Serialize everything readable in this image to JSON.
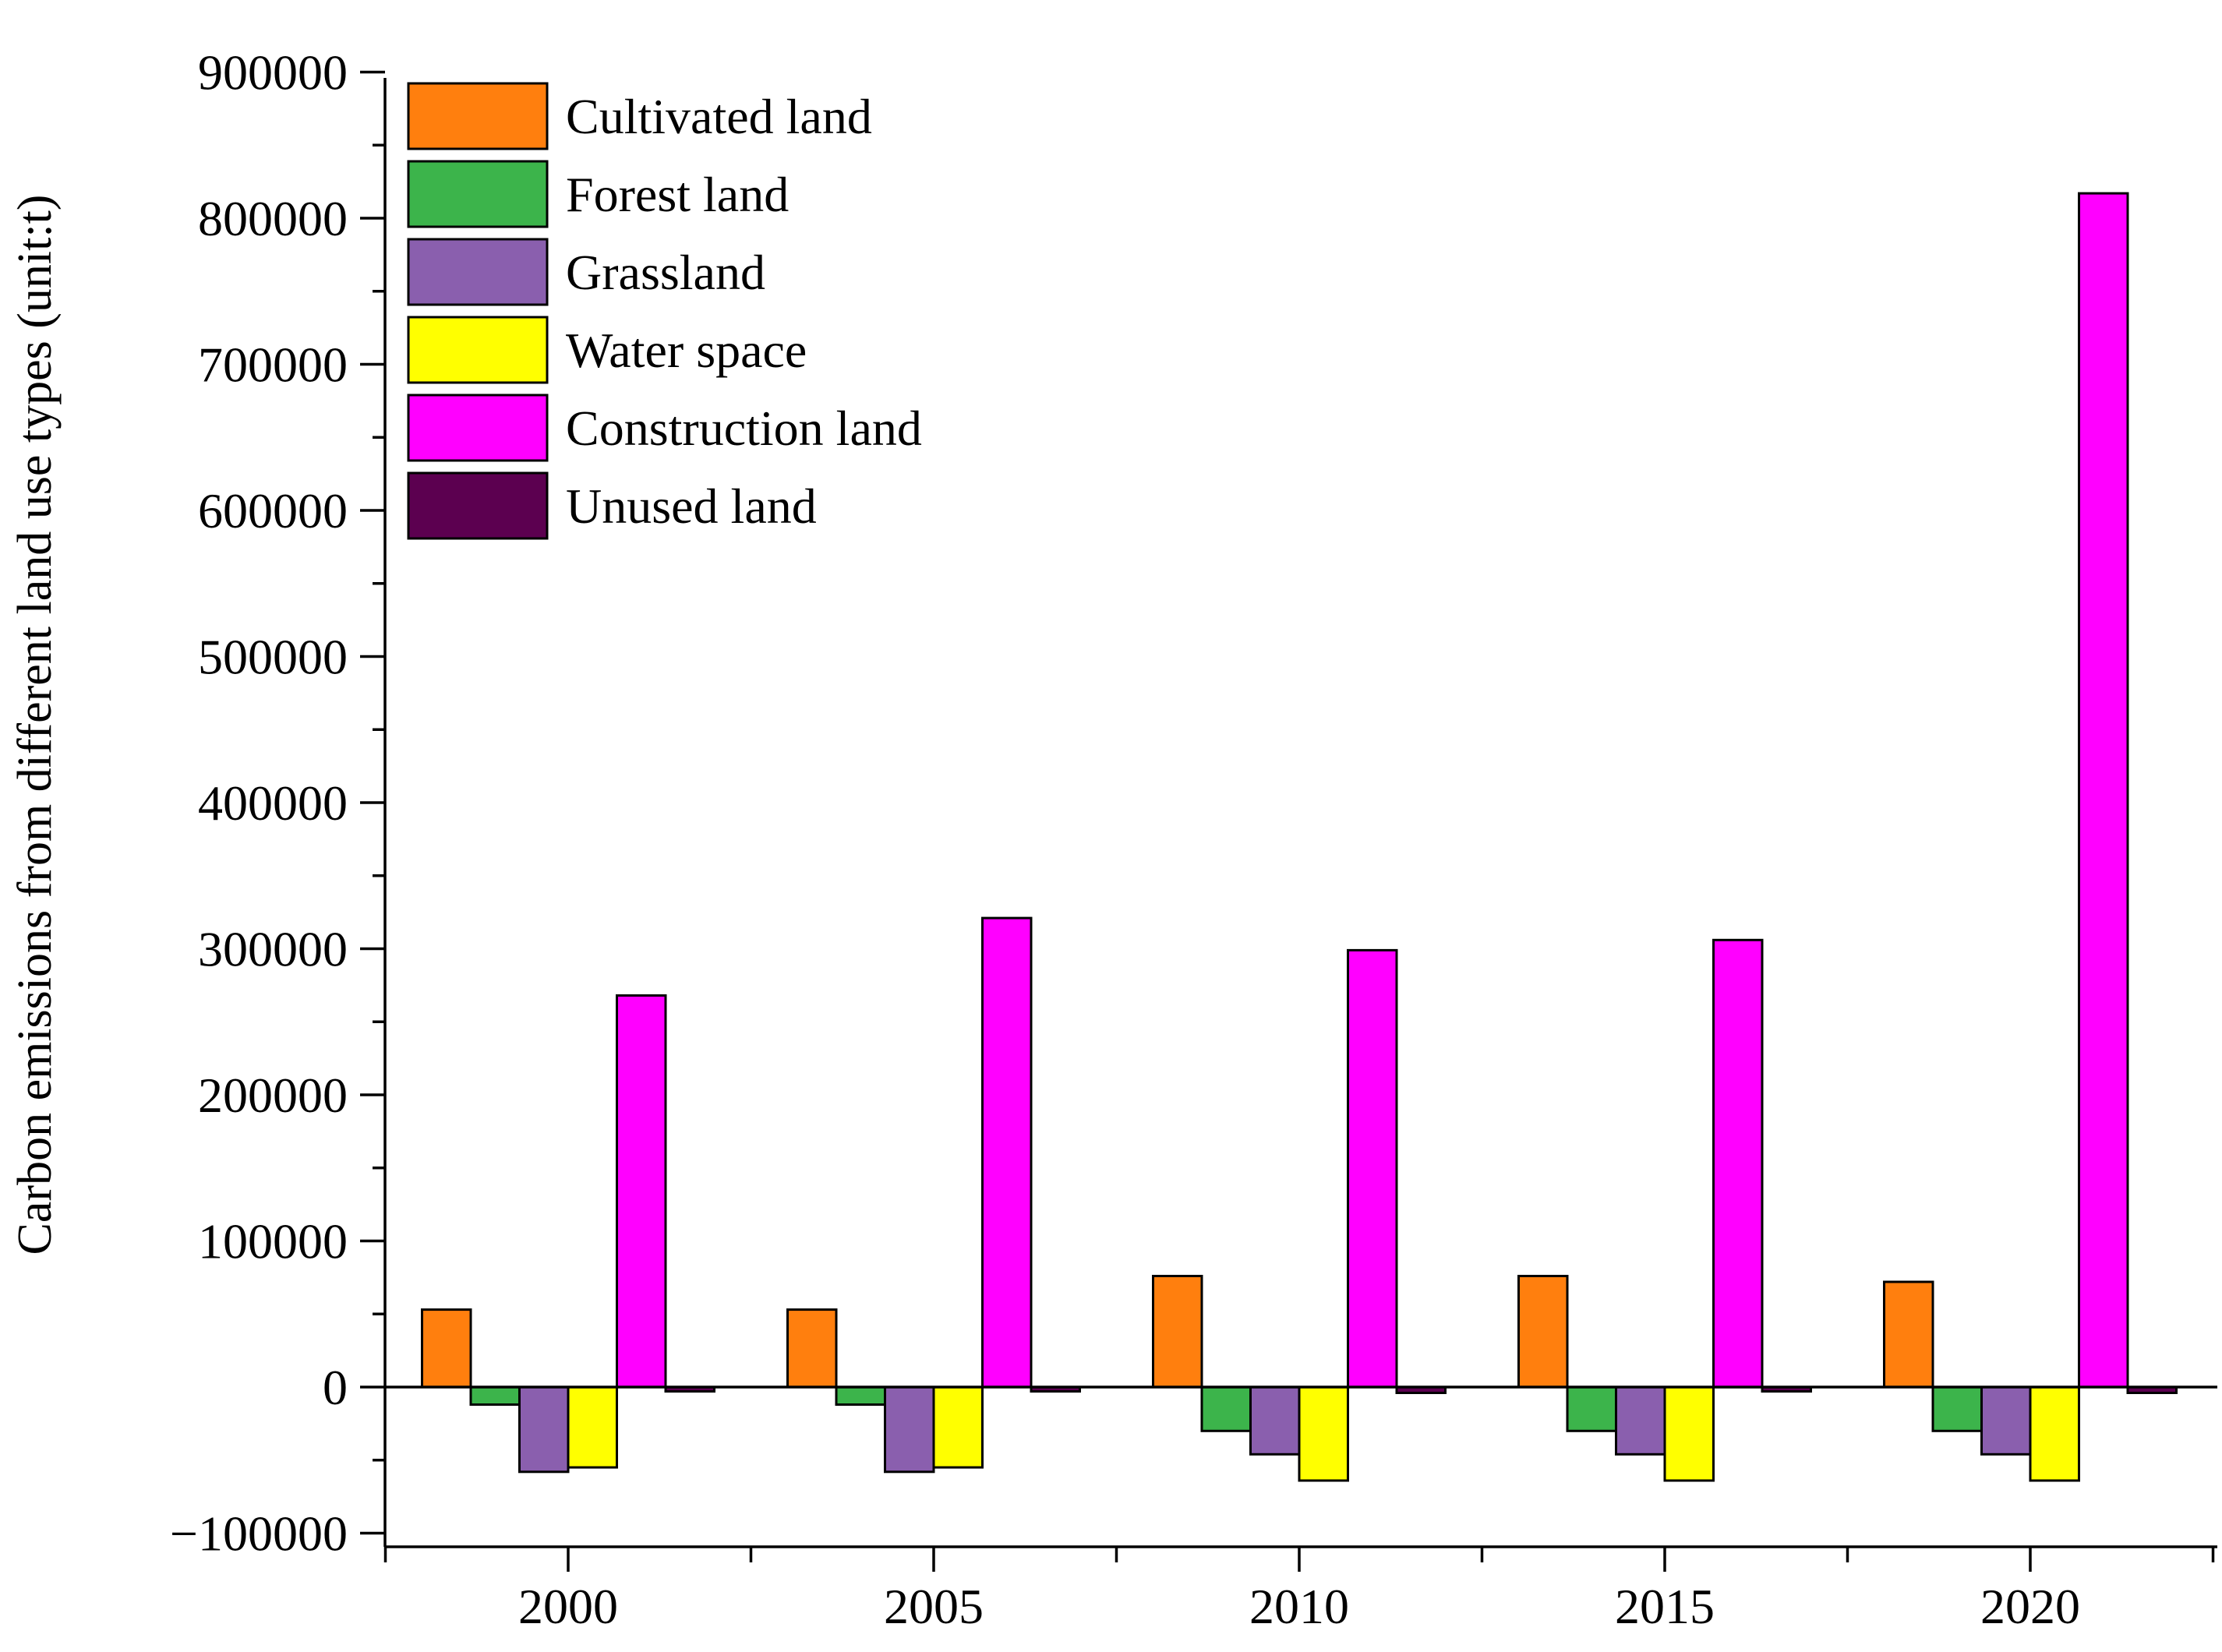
{
  "chart_data": {
    "type": "bar",
    "title": "",
    "xlabel": "",
    "ylabel": "Carbon emissions from different land use types (unit:t)",
    "ylim": [
      -110000,
      900000
    ],
    "y_major_ticks": [
      -100000,
      0,
      100000,
      200000,
      300000,
      400000,
      500000,
      600000,
      700000,
      800000,
      900000
    ],
    "y_tick_labels": [
      "−100000",
      "0",
      "100000",
      "200000",
      "300000",
      "400000",
      "500000",
      "600000",
      "700000",
      "800000",
      "900000"
    ],
    "categories": [
      "2000",
      "2005",
      "2010",
      "2015",
      "2020"
    ],
    "legend_position": "top-left",
    "grid": false,
    "series": [
      {
        "name": "Cultivated land",
        "color": "#ff7f0e",
        "values": [
          53000,
          53000,
          76000,
          76000,
          72000
        ]
      },
      {
        "name": "Forest land",
        "color": "#3cb44b",
        "values": [
          -12000,
          -12000,
          -30000,
          -30000,
          -30000
        ]
      },
      {
        "name": "Grassland",
        "color": "#8a5fae",
        "values": [
          -58000,
          -58000,
          -46000,
          -46000,
          -46000
        ]
      },
      {
        "name": "Water space",
        "color": "#ffff00",
        "values": [
          -55000,
          -55000,
          -64000,
          -64000,
          -64000
        ]
      },
      {
        "name": "Construction land",
        "color": "#ff00ff",
        "values": [
          268000,
          321000,
          299000,
          306000,
          817000
        ]
      },
      {
        "name": "Unused land",
        "color": "#5c0050",
        "values": [
          -3000,
          -3000,
          -4000,
          -3000,
          -4000
        ]
      }
    ]
  }
}
